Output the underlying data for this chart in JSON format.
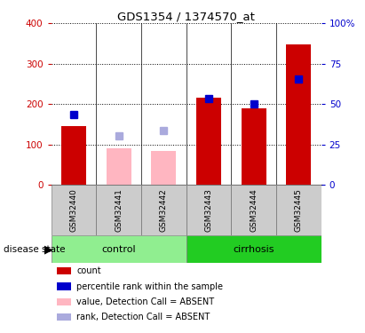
{
  "title": "GDS1354 / 1374570_at",
  "samples": [
    "GSM32440",
    "GSM32441",
    "GSM32442",
    "GSM32443",
    "GSM32444",
    "GSM32445"
  ],
  "ctrl_indices": [
    0,
    1,
    2
  ],
  "cirr_indices": [
    3,
    4,
    5
  ],
  "red_bars": [
    145,
    null,
    null,
    215,
    190,
    348
  ],
  "pink_bars": [
    null,
    90,
    85,
    null,
    null,
    null
  ],
  "blue_squares": [
    175,
    null,
    null,
    213,
    200,
    262
  ],
  "lavender_squares": [
    null,
    122,
    135,
    null,
    null,
    null
  ],
  "left_ylim": [
    0,
    400
  ],
  "right_ylim": [
    0,
    100
  ],
  "left_yticks": [
    0,
    100,
    200,
    300,
    400
  ],
  "right_yticks": [
    0,
    25,
    50,
    75,
    100
  ],
  "right_yticklabels": [
    "0",
    "25",
    "50",
    "75",
    "100%"
  ],
  "left_color": "#CC0000",
  "right_color": "#0000CC",
  "control_color_light": "#AAEEA0",
  "control_color": "#90EE90",
  "cirrhosis_color": "#22CC22",
  "sample_box_color": "#CCCCCC",
  "legend_items": [
    {
      "label": "count",
      "color": "#CC0000"
    },
    {
      "label": "percentile rank within the sample",
      "color": "#0000CC"
    },
    {
      "label": "value, Detection Call = ABSENT",
      "color": "#FFB6C1"
    },
    {
      "label": "rank, Detection Call = ABSENT",
      "color": "#AAAADD"
    }
  ]
}
